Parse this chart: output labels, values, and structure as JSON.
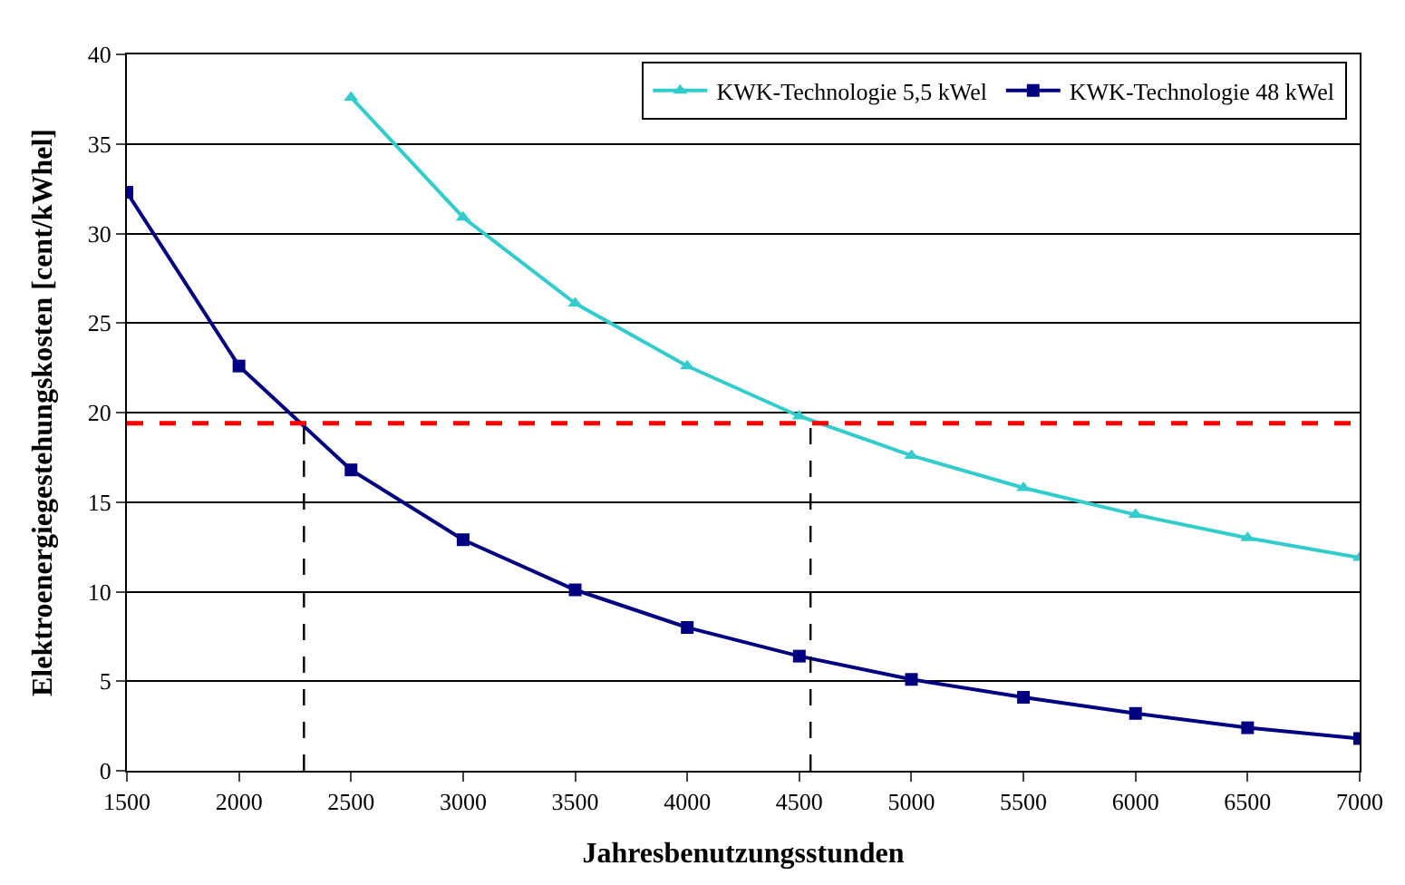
{
  "chart_data": {
    "type": "line",
    "xlabel": "Jahresbenutzungsstunden",
    "ylabel": "Elektroenergiegestehungskosten [cent/kWhel]",
    "xlim": [
      1500,
      7000
    ],
    "xticks": [
      1500,
      2000,
      2500,
      3000,
      3500,
      4000,
      4500,
      5000,
      5500,
      6000,
      6500,
      7000
    ],
    "ylim": [
      0,
      40
    ],
    "yticks": [
      0,
      5,
      10,
      15,
      20,
      25,
      30,
      35,
      40
    ],
    "grid": "y",
    "legend": "top right",
    "series": [
      {
        "name": "KWK-Technologie 5,5 kWel",
        "color": "#33cccc",
        "marker": "triangle",
        "x": [
          2500,
          3000,
          3500,
          4000,
          4500,
          5000,
          5500,
          6000,
          6500,
          7000
        ],
        "values": [
          37.6,
          30.9,
          26.1,
          22.6,
          19.8,
          17.6,
          15.8,
          14.3,
          13.0,
          11.9
        ]
      },
      {
        "name": "KWK-Technologie 48 kWel",
        "color": "#000080",
        "marker": "square",
        "x": [
          1500,
          2000,
          2500,
          3000,
          3500,
          4000,
          4500,
          5000,
          5500,
          6000,
          6500,
          7000
        ],
        "values": [
          32.3,
          22.6,
          16.8,
          12.9,
          10.1,
          8.0,
          6.4,
          5.1,
          4.1,
          3.2,
          2.4,
          1.8
        ]
      },
      {
        "color": "#000000",
        "marker": "none",
        "line_style": "dashed",
        "x": [
          2290,
          2290
        ],
        "values": [
          0,
          19.4
        ]
      },
      {
        "color": "#000000",
        "marker": "none",
        "line_style": "dashed",
        "x": [
          4550,
          4550
        ],
        "values": [
          0,
          19.4
        ]
      }
    ],
    "ref_lines": [
      {
        "axis": "y",
        "value": 19.4,
        "color": "#ff0000",
        "line_style": "dashed"
      }
    ]
  }
}
